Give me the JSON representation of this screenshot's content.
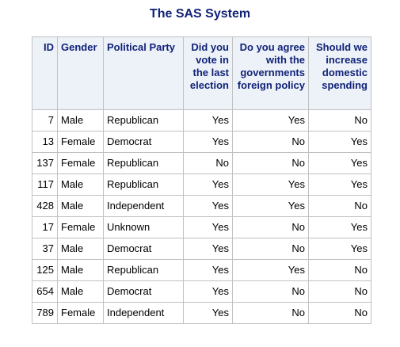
{
  "title": "The SAS System",
  "columns": [
    {
      "label": "ID",
      "align": "right"
    },
    {
      "label": "Gender",
      "align": "left"
    },
    {
      "label": "Political Party",
      "align": "left"
    },
    {
      "label": "Did you vote in the last election",
      "align": "right"
    },
    {
      "label": "Do you agree with the governments foreign policy",
      "align": "right"
    },
    {
      "label": "Should we increase domestic spending",
      "align": "right"
    }
  ],
  "rows": [
    [
      "7",
      "Male",
      "Republican",
      "Yes",
      "Yes",
      "No"
    ],
    [
      "13",
      "Female",
      "Democrat",
      "Yes",
      "No",
      "Yes"
    ],
    [
      "137",
      "Female",
      "Republican",
      "No",
      "No",
      "Yes"
    ],
    [
      "117",
      "Male",
      "Republican",
      "Yes",
      "Yes",
      "Yes"
    ],
    [
      "428",
      "Male",
      "Independent",
      "Yes",
      "Yes",
      "No"
    ],
    [
      "17",
      "Female",
      "Unknown",
      "Yes",
      "No",
      "Yes"
    ],
    [
      "37",
      "Male",
      "Democrat",
      "Yes",
      "No",
      "Yes"
    ],
    [
      "125",
      "Male",
      "Republican",
      "Yes",
      "Yes",
      "No"
    ],
    [
      "654",
      "Male",
      "Democrat",
      "Yes",
      "No",
      "No"
    ],
    [
      "789",
      "Female",
      "Independent",
      "Yes",
      "No",
      "No"
    ]
  ]
}
